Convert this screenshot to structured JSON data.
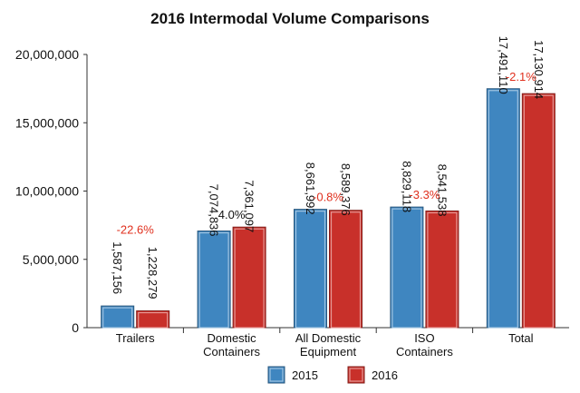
{
  "chart_data": {
    "type": "bar",
    "title": "2016 Intermodal Volume Comparisons",
    "xlabel": "",
    "ylabel": "",
    "ylim": [
      0,
      20000000
    ],
    "yticks": [
      0,
      5000000,
      10000000,
      15000000,
      20000000
    ],
    "ytick_labels": [
      "0",
      "5,000,000",
      "10,000,000",
      "15,000,000",
      "20,000,000"
    ],
    "categories": [
      [
        "Trailers"
      ],
      [
        "Domestic",
        "Containers"
      ],
      [
        "All Domestic",
        "Equipment"
      ],
      [
        "ISO",
        "Containers"
      ],
      [
        "Total"
      ]
    ],
    "series": [
      {
        "name": "2015",
        "color": "#3f86c0",
        "values": [
          1587156,
          7074836,
          8661992,
          8829118,
          17491110
        ],
        "labels": [
          "1,587,156",
          "7,074,836",
          "8,661,992",
          "8,829,118",
          "17,491,110"
        ]
      },
      {
        "name": "2016",
        "color": "#c8302a",
        "values": [
          1228279,
          7361097,
          8589376,
          8541538,
          17130914
        ],
        "labels": [
          "1,228,279",
          "7,361,097",
          "8,589,376",
          "8,541,538",
          "17,130,914"
        ]
      }
    ],
    "annotations": [
      "-22.6%",
      "4.0%",
      "-0.8%",
      "-3.3%",
      "-2.1%"
    ],
    "annotation_colors": [
      "#e0301e",
      "#111111",
      "#e0301e",
      "#e0301e",
      "#e0301e"
    ],
    "grid": false,
    "legend_position": "bottom"
  }
}
